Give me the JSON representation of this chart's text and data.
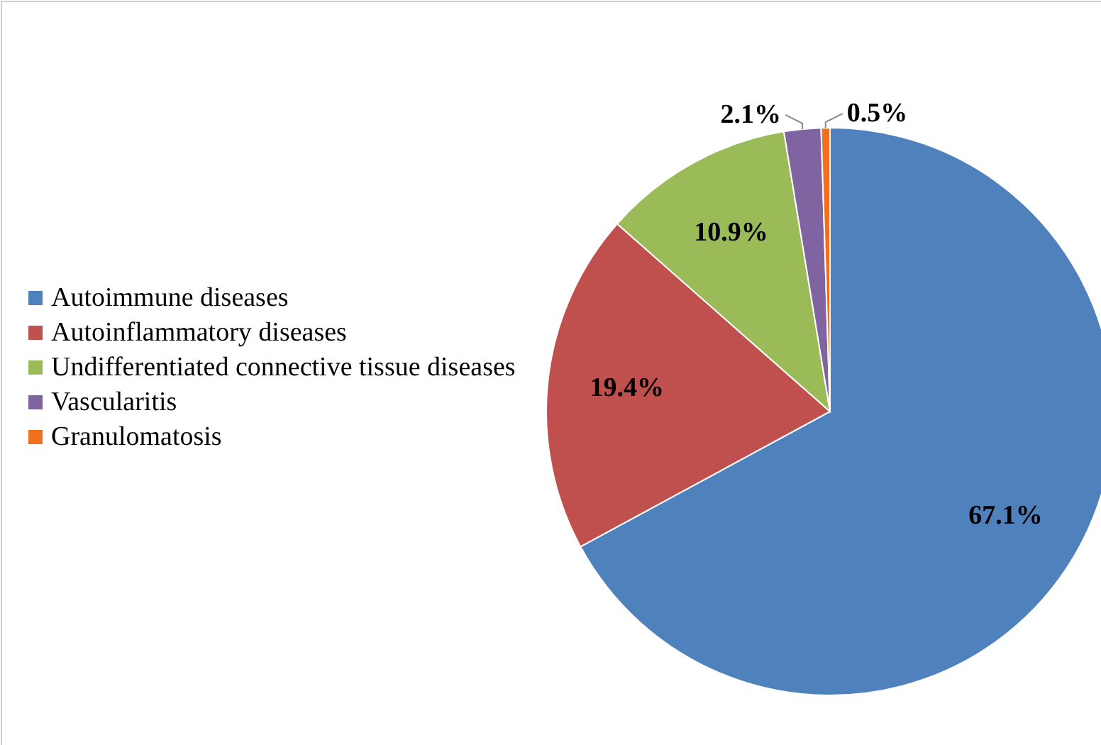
{
  "chart_data": {
    "type": "pie",
    "categories": [
      "Autoimmune diseases",
      "Autoinflammatory diseases",
      "Undifferentiated connective tissue diseases",
      "Vascularitis",
      "Granulomatosis"
    ],
    "values": [
      67.1,
      19.4,
      10.9,
      2.1,
      0.5
    ],
    "colors": [
      "#4f81bd",
      "#c0504d",
      "#9bbb59",
      "#8064a2",
      "#f07020"
    ],
    "value_labels": [
      "67.1%",
      "19.4%",
      "10.9%",
      "2.1%",
      "0.5%"
    ],
    "legend": "left"
  }
}
